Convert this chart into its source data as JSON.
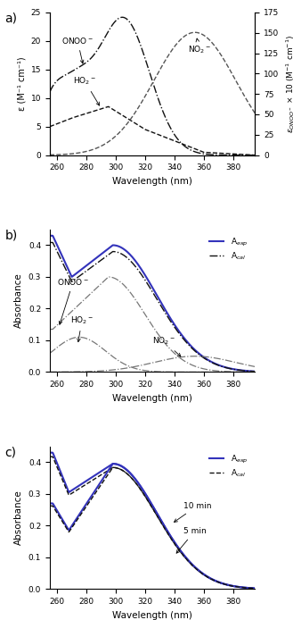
{
  "fig_width": 3.29,
  "fig_height": 6.94,
  "dpi": 100,
  "colors": {
    "blue_exp": "#3333bb",
    "black": "#111111",
    "gray": "#666666"
  },
  "panel_a": {
    "ylabel_left": "ε (M⁻¹ cm⁻¹)",
    "ylabel_right": "εONOO⁻ × 10 (M⁻¹ cm⁻¹)",
    "xlabel": "Wavelength (nm)",
    "ylim_left": [
      0,
      25
    ],
    "ylim_right": [
      0,
      175
    ],
    "yticks_left": [
      0,
      5,
      10,
      15,
      20,
      25
    ],
    "yticks_right": [
      0,
      25,
      50,
      75,
      100,
      125,
      150,
      175
    ],
    "xticks": [
      260,
      280,
      300,
      320,
      340,
      360,
      380
    ]
  },
  "panel_b": {
    "ylabel": "Absorbance",
    "xlabel": "Wavelength (nm)",
    "ylim": [
      0.0,
      0.45
    ],
    "yticks": [
      0.0,
      0.1,
      0.2,
      0.3,
      0.4
    ],
    "xticks": [
      260,
      280,
      300,
      320,
      340,
      360,
      380
    ]
  },
  "panel_c": {
    "ylabel": "Absorbance",
    "xlabel": "Wavelength (nm)",
    "ylim": [
      0.0,
      0.45
    ],
    "yticks": [
      0.0,
      0.1,
      0.2,
      0.3,
      0.4
    ],
    "xticks": [
      260,
      280,
      300,
      320,
      340,
      360,
      380
    ]
  }
}
